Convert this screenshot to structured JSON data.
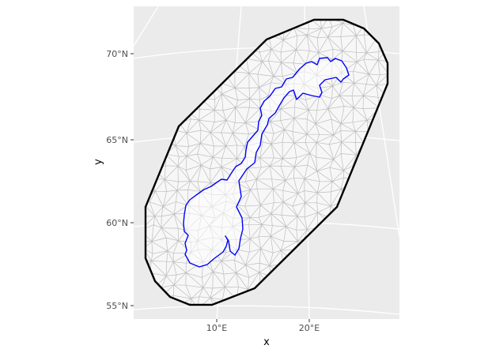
{
  "chart_data": {
    "type": "map",
    "xlabel": "x",
    "ylabel": "y",
    "y_ticks": [
      {
        "label": "70°N",
        "lat": 70
      },
      {
        "label": "65°N",
        "lat": 65
      },
      {
        "label": "60°N",
        "lat": 60
      },
      {
        "label": "55°N",
        "lat": 55
      }
    ],
    "x_ticks": [
      {
        "label": "10°E",
        "lon": 10
      },
      {
        "label": "20°E",
        "lon": 20
      }
    ],
    "layers": [
      {
        "name": "mesh",
        "description_type": "triangulated mesh",
        "color": "#bdbdbd"
      },
      {
        "name": "outer-boundary",
        "description_type": "convex hull polygon",
        "color": "#000000"
      },
      {
        "name": "coastline",
        "description_type": "country outline",
        "color": "#0000ff"
      }
    ]
  },
  "colors": {
    "panel_background": "#ebebeb",
    "grid": "#ffffff",
    "mesh_fill": "#f7f7f7",
    "mesh_edge": "#bdbdbd",
    "hull": "#000000",
    "coast": "#0000ff"
  }
}
